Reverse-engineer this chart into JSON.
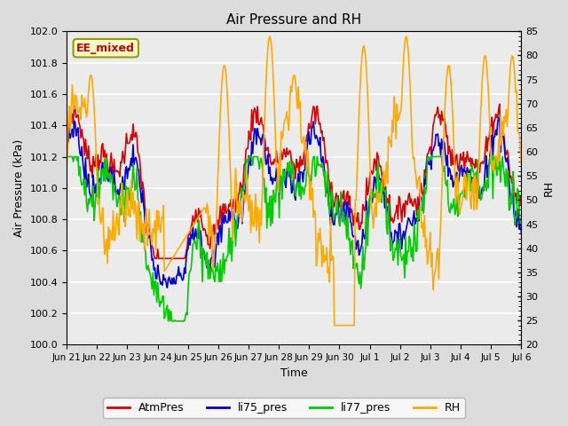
{
  "title": "Air Pressure and RH",
  "xlabel": "Time",
  "ylabel_left": "Air Pressure (kPa)",
  "ylabel_right": "RH",
  "ylim_left": [
    100.0,
    102.0
  ],
  "ylim_right": [
    20,
    85
  ],
  "yticks_left": [
    100.0,
    100.2,
    100.4,
    100.6,
    100.8,
    101.0,
    101.2,
    101.4,
    101.6,
    101.8,
    102.0
  ],
  "yticks_right": [
    20,
    25,
    30,
    35,
    40,
    45,
    50,
    55,
    60,
    65,
    70,
    75,
    80,
    85
  ],
  "bg_color": "#dcdcdc",
  "plot_bg_color": "#ebebeb",
  "annotation_text": "EE_mixed",
  "annotation_color": "#cc0000",
  "annotation_bg": "#ffffcc",
  "annotation_border": "#999900",
  "colors": {
    "AtmPres": "#dd0000",
    "li75_pres": "#0000dd",
    "li77_pres": "#00cc00",
    "RH": "#ffaa00"
  },
  "xtick_labels": [
    "Jun 21",
    "Jun 22",
    "Jun 23",
    "Jun 24",
    "Jun 25",
    "Jun 26",
    "Jun 27",
    "Jun 28",
    "Jun 29",
    "Jun 30",
    "Jul 1",
    "Jul 2",
    "Jul 3",
    "Jul 4",
    "Jul 5",
    "Jul 6"
  ],
  "n_points": 480
}
